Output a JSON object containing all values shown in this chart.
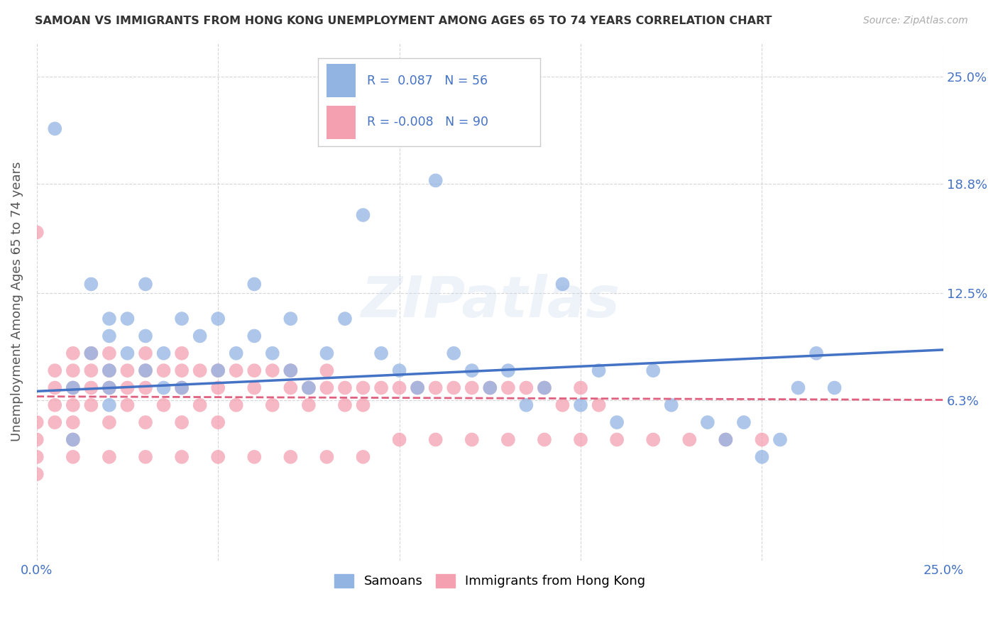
{
  "title": "SAMOAN VS IMMIGRANTS FROM HONG KONG UNEMPLOYMENT AMONG AGES 65 TO 74 YEARS CORRELATION CHART",
  "source": "Source: ZipAtlas.com",
  "ylabel": "Unemployment Among Ages 65 to 74 years",
  "xlim": [
    0.0,
    0.25
  ],
  "ylim": [
    -0.03,
    0.27
  ],
  "ytick_positions": [
    0.063,
    0.125,
    0.188,
    0.25
  ],
  "ytick_labels": [
    "6.3%",
    "12.5%",
    "18.8%",
    "25.0%"
  ],
  "xtick_positions": [
    0.0,
    0.05,
    0.1,
    0.15,
    0.2,
    0.25
  ],
  "xtick_labels": [
    "0.0%",
    "",
    "",
    "",
    "",
    "25.0%"
  ],
  "samoans_R": 0.087,
  "samoans_N": 56,
  "hk_R": -0.008,
  "hk_N": 90,
  "samoans_color": "#92b4e3",
  "hk_color": "#f4a0b0",
  "samoans_line_color": "#4472c4",
  "hk_line_color": "#e06080",
  "watermark": "ZIPatlas",
  "background_color": "#ffffff",
  "tick_color": "#4472c4",
  "samoans_x": [
    0.005,
    0.01,
    0.01,
    0.015,
    0.015,
    0.02,
    0.02,
    0.02,
    0.02,
    0.02,
    0.025,
    0.025,
    0.03,
    0.03,
    0.03,
    0.035,
    0.035,
    0.04,
    0.04,
    0.045,
    0.05,
    0.05,
    0.055,
    0.06,
    0.06,
    0.065,
    0.07,
    0.07,
    0.075,
    0.08,
    0.085,
    0.09,
    0.095,
    0.1,
    0.105,
    0.11,
    0.115,
    0.12,
    0.125,
    0.13,
    0.135,
    0.14,
    0.145,
    0.15,
    0.155,
    0.17,
    0.19,
    0.2,
    0.21,
    0.22,
    0.16,
    0.175,
    0.185,
    0.195,
    0.205,
    0.215
  ],
  "samoans_y": [
    0.22,
    0.07,
    0.04,
    0.09,
    0.13,
    0.08,
    0.07,
    0.1,
    0.11,
    0.06,
    0.09,
    0.11,
    0.08,
    0.1,
    0.13,
    0.07,
    0.09,
    0.11,
    0.07,
    0.1,
    0.08,
    0.11,
    0.09,
    0.1,
    0.13,
    0.09,
    0.08,
    0.11,
    0.07,
    0.09,
    0.11,
    0.17,
    0.09,
    0.08,
    0.07,
    0.19,
    0.09,
    0.08,
    0.07,
    0.08,
    0.06,
    0.07,
    0.13,
    0.06,
    0.08,
    0.08,
    0.04,
    0.03,
    0.07,
    0.07,
    0.05,
    0.06,
    0.05,
    0.05,
    0.04,
    0.09
  ],
  "hk_x": [
    0.0,
    0.0,
    0.0,
    0.0,
    0.0,
    0.005,
    0.005,
    0.005,
    0.005,
    0.01,
    0.01,
    0.01,
    0.01,
    0.01,
    0.01,
    0.015,
    0.015,
    0.015,
    0.015,
    0.02,
    0.02,
    0.02,
    0.02,
    0.025,
    0.025,
    0.025,
    0.03,
    0.03,
    0.03,
    0.03,
    0.035,
    0.035,
    0.04,
    0.04,
    0.04,
    0.04,
    0.045,
    0.045,
    0.05,
    0.05,
    0.05,
    0.055,
    0.055,
    0.06,
    0.06,
    0.065,
    0.065,
    0.07,
    0.07,
    0.075,
    0.075,
    0.08,
    0.08,
    0.085,
    0.085,
    0.09,
    0.09,
    0.095,
    0.1,
    0.105,
    0.11,
    0.115,
    0.12,
    0.125,
    0.13,
    0.135,
    0.14,
    0.145,
    0.15,
    0.155,
    0.01,
    0.02,
    0.03,
    0.04,
    0.05,
    0.06,
    0.07,
    0.08,
    0.09,
    0.1,
    0.11,
    0.12,
    0.13,
    0.14,
    0.15,
    0.16,
    0.17,
    0.18,
    0.19,
    0.2
  ],
  "hk_y": [
    0.05,
    0.04,
    0.03,
    0.02,
    0.16,
    0.08,
    0.07,
    0.06,
    0.05,
    0.09,
    0.08,
    0.07,
    0.06,
    0.05,
    0.04,
    0.09,
    0.08,
    0.07,
    0.06,
    0.09,
    0.08,
    0.07,
    0.05,
    0.08,
    0.07,
    0.06,
    0.09,
    0.08,
    0.07,
    0.05,
    0.08,
    0.06,
    0.09,
    0.08,
    0.07,
    0.05,
    0.08,
    0.06,
    0.08,
    0.07,
    0.05,
    0.08,
    0.06,
    0.08,
    0.07,
    0.08,
    0.06,
    0.08,
    0.07,
    0.07,
    0.06,
    0.08,
    0.07,
    0.07,
    0.06,
    0.07,
    0.06,
    0.07,
    0.07,
    0.07,
    0.07,
    0.07,
    0.07,
    0.07,
    0.07,
    0.07,
    0.07,
    0.06,
    0.07,
    0.06,
    0.03,
    0.03,
    0.03,
    0.03,
    0.03,
    0.03,
    0.03,
    0.03,
    0.03,
    0.04,
    0.04,
    0.04,
    0.04,
    0.04,
    0.04,
    0.04,
    0.04,
    0.04,
    0.04,
    0.04
  ],
  "sam_line_x": [
    0.0,
    0.25
  ],
  "sam_line_y": [
    0.068,
    0.092
  ],
  "hk_line_x": [
    0.0,
    0.25
  ],
  "hk_line_y": [
    0.065,
    0.063
  ]
}
